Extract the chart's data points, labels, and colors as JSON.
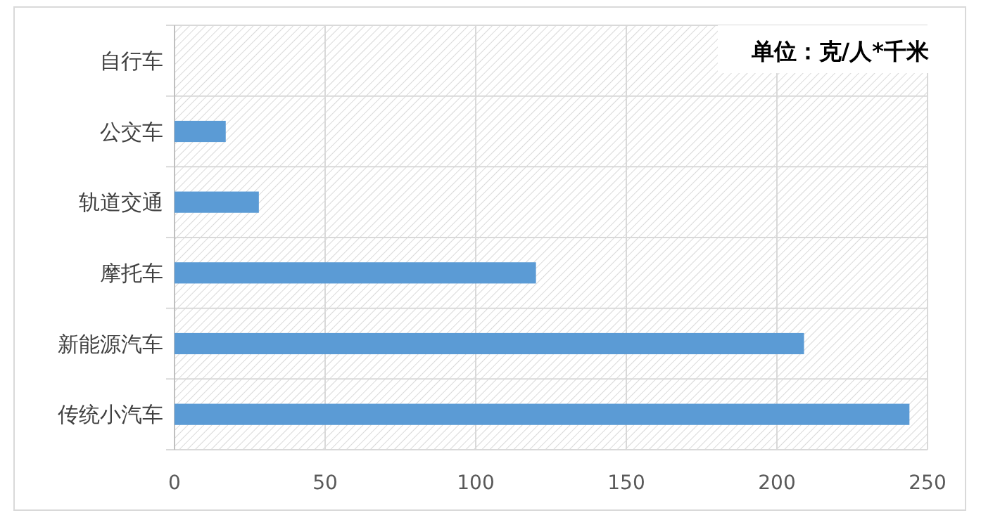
{
  "chart_data": {
    "type": "bar",
    "orientation": "horizontal",
    "categories": [
      "自行车",
      "公交车",
      "轨道交通",
      "摩托车",
      "新能源汽车",
      "传统小汽车"
    ],
    "values": [
      0,
      17,
      28,
      120,
      209,
      244
    ],
    "color": "#5b9bd5",
    "xlim": [
      0,
      250
    ],
    "xticks": [
      0,
      50,
      100,
      150,
      200,
      250
    ],
    "grid": true,
    "annotations": [
      "单位：克/人*千米"
    ]
  }
}
